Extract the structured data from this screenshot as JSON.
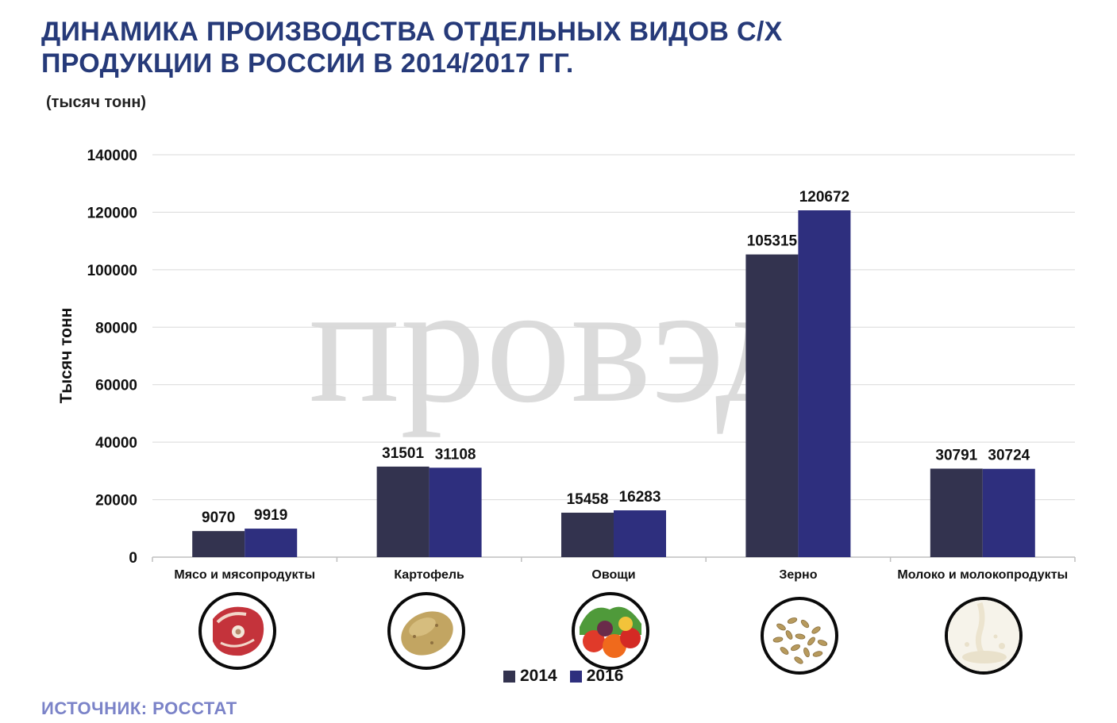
{
  "title_line1": "ДИНАМИКА ПРОИЗВОДСТВА ОТДЕЛЬНЫХ ВИДОВ С/Х",
  "title_line2": "ПРОДУКЦИИ В РОССИИ В 2014/2017 ГГ.",
  "subtitle": "(тысяч тонн)",
  "source": "ИСТОЧНИК:  РОССТАТ",
  "watermark": "провэд",
  "colors": {
    "title": "#263a79",
    "source": "#7b83c8",
    "series_2014": "#33334f",
    "series_2016": "#2e2f7e",
    "grid": "#d9d9d9"
  },
  "icons": [
    "meat-icon",
    "potato-icon",
    "vegetables-icon",
    "grain-icon",
    "milk-icon"
  ],
  "chart_data": {
    "type": "bar",
    "categories": [
      "Мясо и мясопродукты",
      "Картофель",
      "Овощи",
      "Зерно",
      "Молоко и молокопродукты"
    ],
    "series": [
      {
        "name": "2014",
        "values": [
          9070,
          31501,
          15458,
          105315,
          30791
        ]
      },
      {
        "name": "2016",
        "values": [
          9919,
          31108,
          16283,
          120672,
          30724
        ]
      }
    ],
    "ylabel": "Тысяч тонн",
    "xlabel": "",
    "ylim": [
      0,
      140000
    ],
    "yticks": [
      0,
      20000,
      40000,
      60000,
      80000,
      100000,
      120000,
      140000
    ],
    "grid": true,
    "legend": "bottom",
    "data_labels": true
  }
}
